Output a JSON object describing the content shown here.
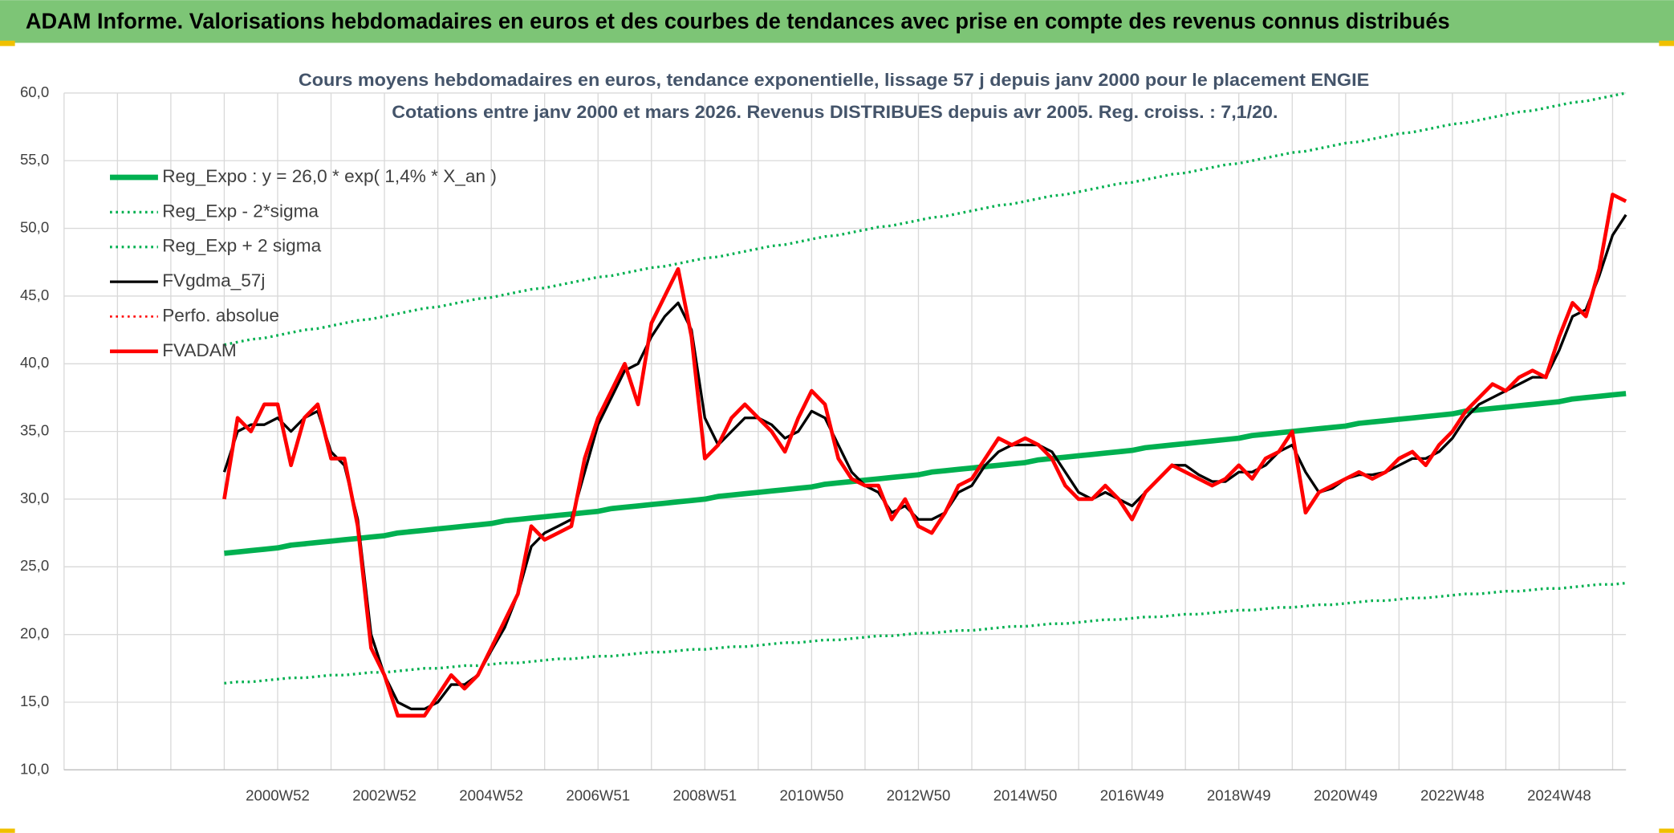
{
  "header": {
    "title": "ADAM Informe. Valorisations hebdomadaires en euros et des courbes de tendances avec prise en compte des revenus connus distribués"
  },
  "chart_data": {
    "type": "line",
    "title": "Cours moyens hebdomadaires en euros, tendance exponentielle, lissage 57 j depuis janv 2000 pour le placement ENGIE",
    "subtitle": "Cotations entre janv 2000 et mars 2026. Revenus DISTRIBUES depuis avr 2005. Reg. croiss. : 7,1/20.",
    "categories": [
      null,
      null,
      null,
      null,
      null,
      null,
      null,
      null,
      null,
      null,
      null,
      null,
      null,
      null,
      null,
      null,
      "2000W52",
      null,
      null,
      null,
      null,
      null,
      null,
      null,
      "2002W52",
      null,
      null,
      null,
      null,
      null,
      null,
      null,
      "2004W52",
      null,
      null,
      null,
      null,
      null,
      null,
      null,
      "2006W51",
      null,
      null,
      null,
      null,
      null,
      null,
      null,
      "2008W51",
      null,
      null,
      null,
      null,
      null,
      null,
      null,
      "2010W50",
      null,
      null,
      null,
      null,
      null,
      null,
      null,
      "2012W50",
      null,
      null,
      null,
      null,
      null,
      null,
      null,
      "2014W50",
      null,
      null,
      null,
      null,
      null,
      null,
      null,
      "2016W49",
      null,
      null,
      null,
      null,
      null,
      null,
      null,
      "2018W49",
      null,
      null,
      null,
      null,
      null,
      null,
      null,
      "2020W49",
      null,
      null,
      null,
      null,
      null,
      null,
      null,
      "2022W48",
      null,
      null,
      null,
      null,
      null,
      null,
      null,
      "2024W48",
      null,
      null,
      null,
      null,
      null
    ],
    "ylim": [
      10,
      60
    ],
    "yticks": [
      {
        "value": 10,
        "label": "10,0"
      },
      {
        "value": 15,
        "label": "15,0"
      },
      {
        "value": 20,
        "label": "20,0"
      },
      {
        "value": 25,
        "label": "25,0"
      },
      {
        "value": 30,
        "label": "30,0"
      },
      {
        "value": 35,
        "label": "35,0"
      },
      {
        "value": 40,
        "label": "40,0"
      },
      {
        "value": 45,
        "label": "45,0"
      },
      {
        "value": 50,
        "label": "50,0"
      },
      {
        "value": 55,
        "label": "55,0"
      },
      {
        "value": 60,
        "label": "60,0"
      }
    ],
    "grid": true,
    "legend": "upper left",
    "series": [
      {
        "name": "Reg_Expo : y = 26,0 * exp( 1,4% *  X_an )",
        "color": "#00b050",
        "style": "solid",
        "width": 5,
        "values": [
          null,
          null,
          null,
          null,
          null,
          null,
          null,
          null,
          null,
          null,
          null,
          null,
          26.0,
          26.1,
          26.2,
          26.3,
          26.4,
          26.6,
          26.7,
          26.8,
          26.9,
          27.0,
          27.1,
          27.2,
          27.3,
          27.5,
          27.6,
          27.7,
          27.8,
          27.9,
          28.0,
          28.1,
          28.2,
          28.4,
          28.5,
          28.6,
          28.7,
          28.8,
          28.9,
          29.0,
          29.1,
          29.3,
          29.4,
          29.5,
          29.6,
          29.7,
          29.8,
          29.9,
          30.0,
          30.2,
          30.3,
          30.4,
          30.5,
          30.6,
          30.7,
          30.8,
          30.9,
          31.1,
          31.2,
          31.3,
          31.4,
          31.5,
          31.6,
          31.7,
          31.8,
          32.0,
          32.1,
          32.2,
          32.3,
          32.4,
          32.5,
          32.6,
          32.7,
          32.9,
          33.0,
          33.1,
          33.2,
          33.3,
          33.4,
          33.5,
          33.6,
          33.8,
          33.9,
          34.0,
          34.1,
          34.2,
          34.3,
          34.4,
          34.5,
          34.7,
          34.8,
          34.9,
          35.0,
          35.1,
          35.2,
          35.3,
          35.4,
          35.6,
          35.7,
          35.8,
          35.9,
          36.0,
          36.1,
          36.2,
          36.3,
          36.5,
          36.6,
          36.7,
          36.8,
          36.9,
          37.0,
          37.1,
          37.2,
          37.4,
          37.5,
          37.6,
          37.7,
          37.8
        ]
      },
      {
        "name": "Reg_Exp - 2*sigma",
        "color": "#00b050",
        "style": "dotted",
        "width": 2.5,
        "values": [
          null,
          null,
          null,
          null,
          null,
          null,
          null,
          null,
          null,
          null,
          null,
          null,
          16.4,
          16.5,
          16.5,
          16.6,
          16.7,
          16.8,
          16.8,
          16.9,
          17.0,
          17.0,
          17.1,
          17.2,
          17.2,
          17.3,
          17.4,
          17.5,
          17.5,
          17.6,
          17.7,
          17.7,
          17.8,
          17.9,
          17.9,
          18.0,
          18.1,
          18.2,
          18.2,
          18.3,
          18.4,
          18.4,
          18.5,
          18.6,
          18.7,
          18.7,
          18.8,
          18.9,
          18.9,
          19.0,
          19.1,
          19.1,
          19.2,
          19.3,
          19.4,
          19.4,
          19.5,
          19.6,
          19.6,
          19.7,
          19.8,
          19.9,
          19.9,
          20.0,
          20.1,
          20.1,
          20.2,
          20.3,
          20.3,
          20.4,
          20.5,
          20.6,
          20.6,
          20.7,
          20.8,
          20.8,
          20.9,
          21.0,
          21.1,
          21.1,
          21.2,
          21.3,
          21.3,
          21.4,
          21.5,
          21.5,
          21.6,
          21.7,
          21.8,
          21.8,
          21.9,
          22.0,
          22.0,
          22.1,
          22.2,
          22.2,
          22.3,
          22.4,
          22.5,
          22.5,
          22.6,
          22.7,
          22.7,
          22.8,
          22.9,
          23.0,
          23.0,
          23.1,
          23.2,
          23.2,
          23.3,
          23.4,
          23.4,
          23.5,
          23.6,
          23.7,
          23.7,
          23.8
        ]
      },
      {
        "name": "Reg_Exp + 2 sigma",
        "color": "#00b050",
        "style": "dotted",
        "width": 2.5,
        "values": [
          null,
          null,
          null,
          null,
          null,
          null,
          null,
          null,
          null,
          null,
          null,
          null,
          41.4,
          41.6,
          41.8,
          41.9,
          42.1,
          42.3,
          42.5,
          42.6,
          42.8,
          43.0,
          43.2,
          43.3,
          43.5,
          43.7,
          43.9,
          44.1,
          44.2,
          44.4,
          44.6,
          44.8,
          44.9,
          45.1,
          45.3,
          45.5,
          45.6,
          45.8,
          46.0,
          46.2,
          46.4,
          46.5,
          46.7,
          46.9,
          47.1,
          47.2,
          47.4,
          47.6,
          47.8,
          47.9,
          48.1,
          48.3,
          48.5,
          48.7,
          48.8,
          49.0,
          49.2,
          49.4,
          49.5,
          49.7,
          49.9,
          50.1,
          50.2,
          50.4,
          50.6,
          50.8,
          50.9,
          51.1,
          51.3,
          51.5,
          51.7,
          51.8,
          52.0,
          52.2,
          52.4,
          52.5,
          52.7,
          52.9,
          53.1,
          53.3,
          53.4,
          53.6,
          53.8,
          54.0,
          54.1,
          54.3,
          54.5,
          54.7,
          54.8,
          55.0,
          55.2,
          55.4,
          55.6,
          55.7,
          55.9,
          56.1,
          56.3,
          56.4,
          56.6,
          56.8,
          57.0,
          57.1,
          57.3,
          57.5,
          57.7,
          57.8,
          58.0,
          58.2,
          58.4,
          58.6,
          58.7,
          58.9,
          59.1,
          59.3,
          59.4,
          59.6,
          59.8,
          60.0
        ]
      },
      {
        "name": "FVgdma_57j",
        "color": "#000000",
        "style": "solid",
        "width": 2.5,
        "values": [
          null,
          null,
          null,
          null,
          null,
          null,
          null,
          null,
          null,
          null,
          null,
          null,
          32,
          35,
          35.5,
          35.5,
          36,
          35,
          36,
          36.5,
          33.5,
          32.5,
          28.5,
          20,
          17,
          15,
          14.5,
          14.5,
          15,
          16.3,
          16.3,
          17,
          18.8,
          20.5,
          23,
          26.5,
          27.5,
          28,
          28.5,
          32,
          35.5,
          37.5,
          39.5,
          40,
          42,
          43.5,
          44.5,
          42.5,
          36,
          34,
          35,
          36,
          36,
          35.5,
          34.5,
          35,
          36.5,
          36,
          34,
          32,
          31,
          30.5,
          29,
          29.5,
          28.5,
          28.5,
          29,
          30.5,
          31,
          32.5,
          33.5,
          34,
          34,
          34,
          33.5,
          32,
          30.5,
          30,
          30.5,
          30,
          29.5,
          30.5,
          31.5,
          32.5,
          32.5,
          31.8,
          31.3,
          31.3,
          32,
          32,
          32.5,
          33.5,
          34,
          32,
          30.5,
          30.8,
          31.5,
          31.8,
          31.8,
          32,
          32.5,
          33,
          33,
          33.5,
          34.5,
          36,
          37,
          37.5,
          38,
          38.5,
          39,
          39,
          41,
          43.5,
          44,
          46.5,
          49.5,
          51
        ]
      },
      {
        "name": "Perfo. absolue",
        "color": "#ff0000",
        "style": "dotted",
        "width": 2
      },
      {
        "name": "FVADAM",
        "color": "#ff0000",
        "style": "solid",
        "width": 3.5,
        "values": [
          null,
          null,
          null,
          null,
          null,
          null,
          null,
          null,
          null,
          null,
          null,
          null,
          30,
          36,
          35,
          37,
          37,
          32.5,
          36,
          37,
          33,
          33,
          28,
          19,
          17,
          14,
          14,
          14,
          15.5,
          17,
          16,
          17,
          19,
          21,
          23,
          28,
          27,
          27.5,
          28,
          33,
          36,
          38,
          40,
          37,
          43,
          45,
          47,
          42,
          33,
          34,
          36,
          37,
          36,
          35,
          33.5,
          36,
          38,
          37,
          33,
          31.5,
          31,
          31,
          28.5,
          30,
          28,
          27.5,
          29,
          31,
          31.5,
          33,
          34.5,
          34,
          34.5,
          34,
          33,
          31,
          30,
          30,
          31,
          30,
          28.5,
          30.5,
          31.5,
          32.5,
          32,
          31.5,
          31,
          31.5,
          32.5,
          31.5,
          33,
          33.5,
          35,
          29,
          30.5,
          31,
          31.5,
          32,
          31.5,
          32,
          33,
          33.5,
          32.5,
          34,
          35,
          36.5,
          37.5,
          38.5,
          38,
          39,
          39.5,
          39,
          42,
          44.5,
          43.5,
          47,
          52.5,
          52
        ]
      }
    ]
  }
}
